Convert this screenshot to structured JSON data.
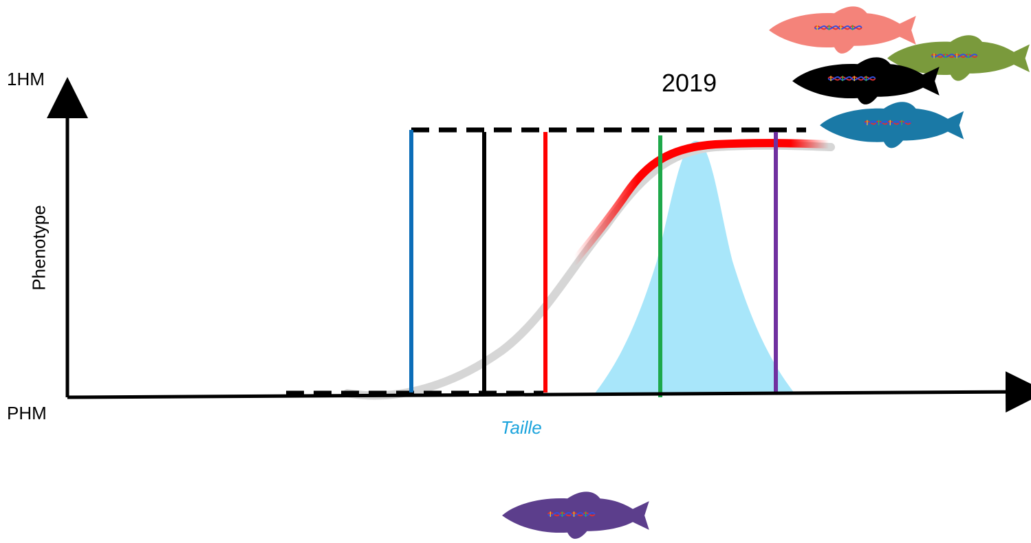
{
  "labels": {
    "y_top": "1HM",
    "y_bottom": "PHM",
    "y_axis": "Phenotype",
    "x_axis": "Taille",
    "year": "2019"
  },
  "colors": {
    "axis": "#000000",
    "curve_grey": "#d6d6d6",
    "curve_red": "#ff0000",
    "bell_fill": "#a8e6fa",
    "line_blue": "#0b6db8",
    "line_black": "#000000",
    "line_red": "#ff0000",
    "line_green": "#1ea84a",
    "line_purple": "#7030a0",
    "fish_salmon": "#f4837a",
    "fish_olive": "#7a9a3c",
    "fish_black": "#000000",
    "fish_blue": "#1a79a6",
    "fish_purple": "#5c3e8c",
    "x_axis_label": "#1aa3dc"
  },
  "icons": [
    "fish-salmon-icon",
    "fish-olive-icon",
    "fish-black-icon",
    "fish-blue-icon",
    "fish-purple-icon",
    "dna-icon"
  ]
}
